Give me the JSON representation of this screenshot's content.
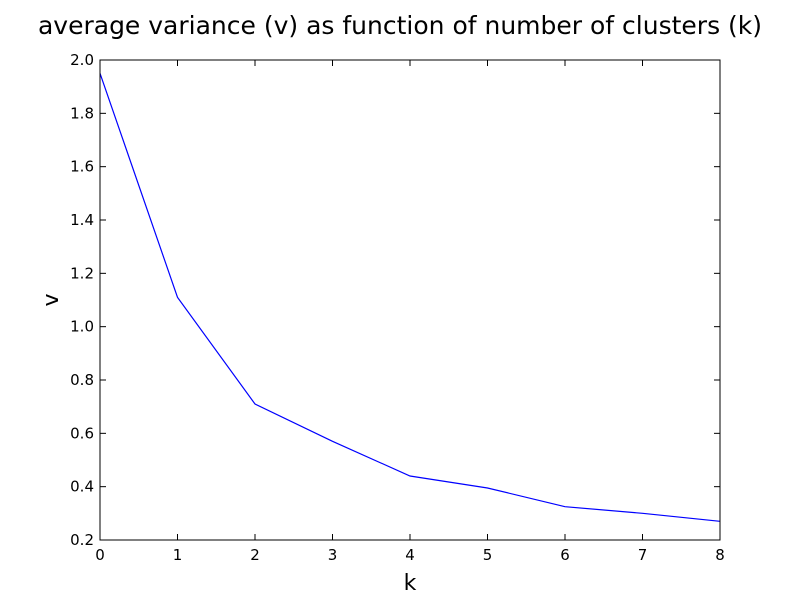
{
  "chart_data": {
    "type": "line",
    "title": "average variance (v) as function of number of clusters (k)",
    "xlabel": "k",
    "ylabel": "v",
    "xlim": [
      0,
      8
    ],
    "ylim": [
      0.2,
      2.0
    ],
    "x_ticks": [
      "0",
      "1",
      "2",
      "3",
      "4",
      "5",
      "6",
      "7",
      "8"
    ],
    "y_ticks": [
      "0.2",
      "0.4",
      "0.6",
      "0.8",
      "1.0",
      "1.2",
      "1.4",
      "1.6",
      "1.8",
      "2.0"
    ],
    "grid": false,
    "series": [
      {
        "color": "#0000ff",
        "x": [
          0,
          1,
          2,
          3,
          4,
          5,
          6,
          7,
          8
        ],
        "y": [
          1.95,
          1.11,
          0.71,
          0.57,
          0.44,
          0.395,
          0.325,
          0.3,
          0.27
        ]
      }
    ]
  }
}
